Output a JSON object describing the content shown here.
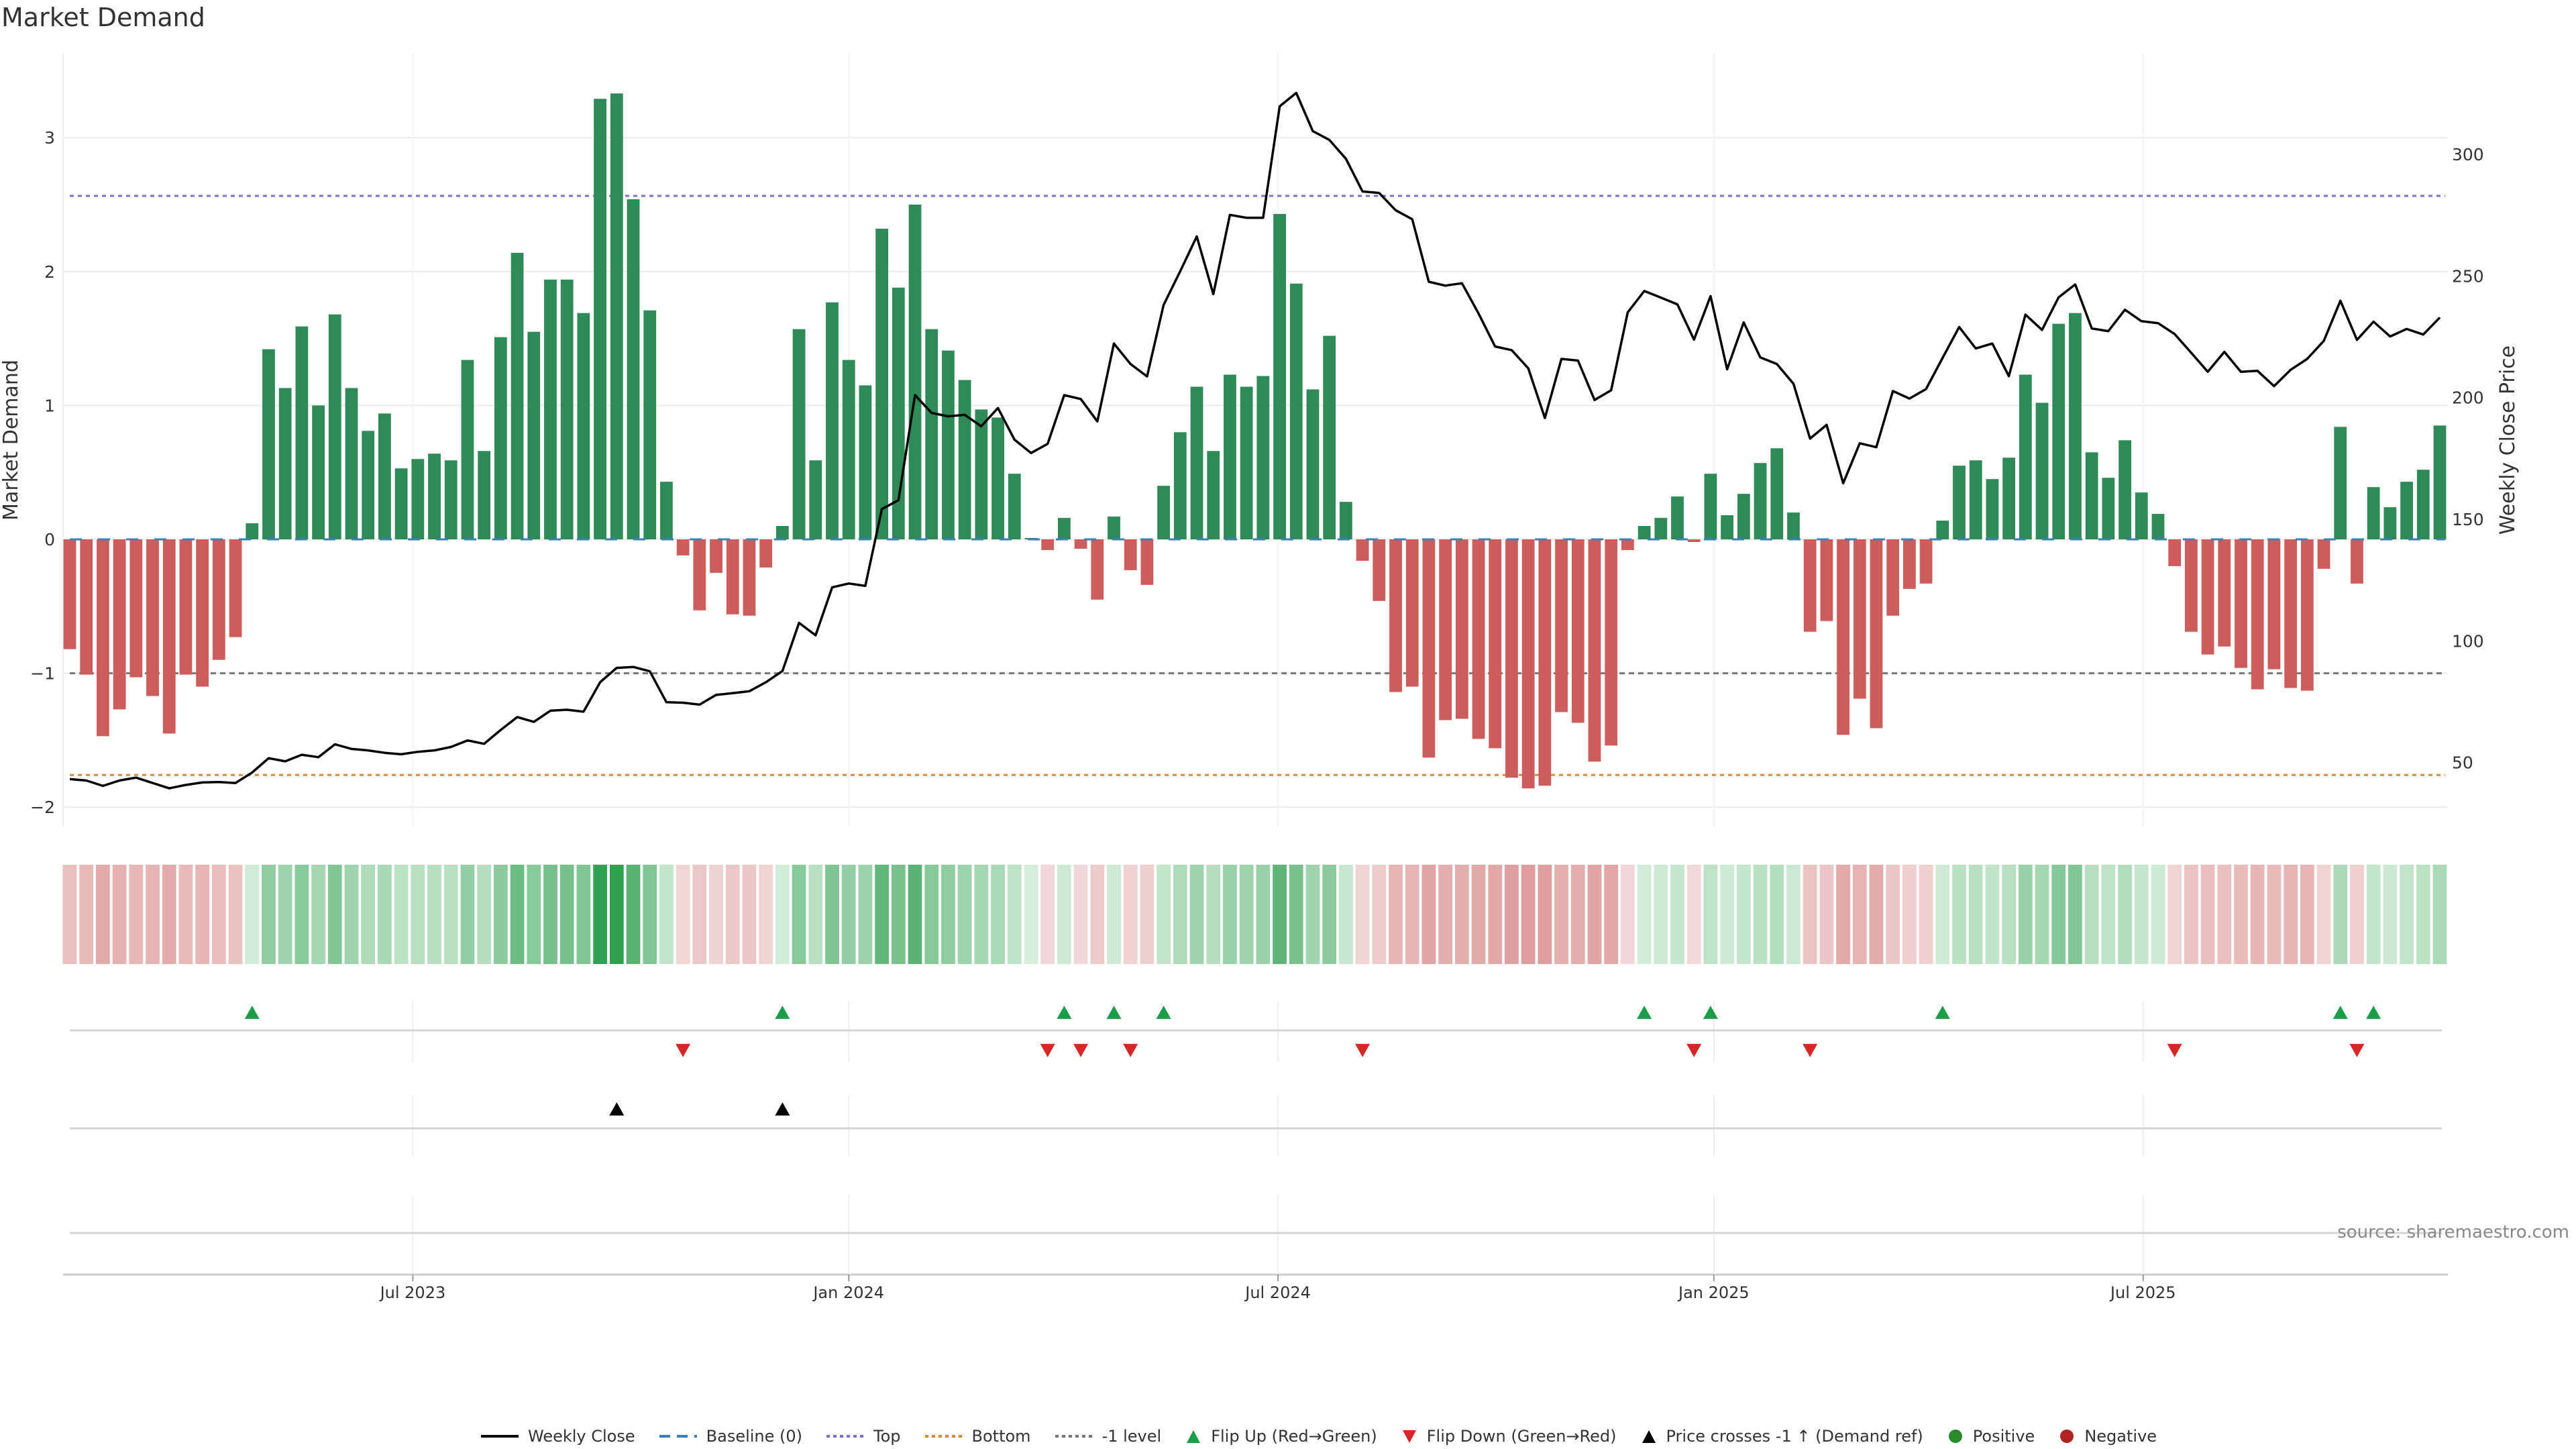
{
  "title": "Market Demand",
  "source": "source: sharemaestro.com",
  "legend": [
    {
      "label": "Weekly Close",
      "kind": "line",
      "color": "#000000"
    },
    {
      "label": "Baseline (0)",
      "kind": "dash",
      "color": "#3a7fb5"
    },
    {
      "label": "Top",
      "kind": "dot",
      "color": "#7b6fd6"
    },
    {
      "label": "Bottom",
      "kind": "dot",
      "color": "#e08a2a"
    },
    {
      "label": "-1 level",
      "kind": "dot",
      "color": "#777777"
    },
    {
      "label": "Flip Up (Red→Green)",
      "kind": "tri-up",
      "color": "#1a9e4a"
    },
    {
      "label": "Flip Down (Green→Red)",
      "kind": "tri-down",
      "color": "#d62728"
    },
    {
      "label": "Price crosses -1 ↑ (Demand ref)",
      "kind": "tri-up",
      "color": "#000000"
    },
    {
      "label": "Positive",
      "kind": "circle",
      "color": "#2a8a2a"
    },
    {
      "label": "Negative",
      "kind": "circle",
      "color": "#b22222"
    }
  ],
  "colors": {
    "positive_bar": "#2e8b57",
    "negative_bar": "#cd5c5c",
    "grid": "#ececec",
    "axis": "#cccccc"
  },
  "chart_data": {
    "type": "bar",
    "title": "Market Demand",
    "ylabel": "Market Demand",
    "y2label": "Weekly Close Price",
    "ylim": [
      -2.2,
      3.5
    ],
    "y2lim": [
      32,
      336
    ],
    "yticks": [
      -2,
      -1,
      0,
      1,
      2,
      3
    ],
    "y2ticks": [
      50,
      100,
      150,
      200,
      250,
      300
    ],
    "xticks": [
      {
        "label": "Jul 2023",
        "week": 20.7
      },
      {
        "label": "Jan 2024",
        "week": 47.0
      },
      {
        "label": "Jul 2024",
        "week": 72.9
      },
      {
        "label": "Jan 2025",
        "week": 99.2
      },
      {
        "label": "Jul 2025",
        "week": 125.1
      }
    ],
    "reference_lines": {
      "top": 2.565,
      "bottom": -1.76,
      "minus_one": -1,
      "baseline": 0
    },
    "demand": [
      -0.82,
      -1.01,
      -1.47,
      -1.27,
      -1.03,
      -1.17,
      -1.45,
      -1.01,
      -1.1,
      -0.9,
      -0.73,
      0.12,
      1.42,
      1.13,
      1.59,
      1.0,
      1.68,
      1.13,
      0.81,
      0.94,
      0.53,
      0.6,
      0.64,
      0.59,
      1.34,
      0.66,
      1.51,
      2.14,
      1.55,
      1.94,
      1.94,
      1.69,
      3.29,
      3.33,
      2.54,
      1.71,
      0.43,
      -0.12,
      -0.53,
      -0.25,
      -0.56,
      -0.57,
      -0.21,
      0.1,
      1.57,
      0.59,
      1.77,
      1.34,
      1.15,
      2.32,
      1.88,
      2.5,
      1.57,
      1.41,
      1.19,
      0.97,
      0.91,
      0.49,
      0.01,
      -0.08,
      0.16,
      -0.07,
      -0.45,
      0.17,
      -0.23,
      -0.34,
      0.4,
      0.8,
      1.14,
      0.66,
      1.23,
      1.14,
      1.22,
      2.43,
      1.91,
      1.12,
      1.52,
      0.28,
      -0.16,
      -0.46,
      -1.14,
      -1.1,
      -1.63,
      -1.35,
      -1.34,
      -1.49,
      -1.56,
      -1.78,
      -1.86,
      -1.84,
      -1.29,
      -1.37,
      -1.66,
      -1.54,
      -0.08,
      0.1,
      0.16,
      0.32,
      -0.02,
      0.49,
      0.18,
      0.34,
      0.57,
      0.68,
      0.2,
      -0.69,
      -0.61,
      -1.46,
      -1.19,
      -1.41,
      -0.57,
      -0.37,
      -0.33,
      0.14,
      0.55,
      0.59,
      0.45,
      0.61,
      1.23,
      1.02,
      1.61,
      1.69,
      0.65,
      0.46,
      0.74,
      0.35,
      0.19,
      -0.2,
      -0.69,
      -0.86,
      -0.8,
      -0.96,
      -1.12,
      -0.97,
      -1.11,
      -1.13,
      -0.22,
      0.84,
      -0.33,
      0.39,
      0.24,
      0.43,
      0.52,
      0.85
    ],
    "weekly_close": [
      43.2,
      42.6,
      40.4,
      42.6,
      43.8,
      41.6,
      39.4,
      40.8,
      41.8,
      42.0,
      41.6,
      45.9,
      51.8,
      50.5,
      53.2,
      52.2,
      57.5,
      55.6,
      55.0,
      54.0,
      53.4,
      54.4,
      55.0,
      56.4,
      59.1,
      57.7,
      63.4,
      68.7,
      66.7,
      71.3,
      71.7,
      70.9,
      83.0,
      88.9,
      89.3,
      87.5,
      74.8,
      74.6,
      73.8,
      77.8,
      78.5,
      79.3,
      83.0,
      87.6,
      107.4,
      102.3,
      122.0,
      123.6,
      122.6,
      154.2,
      157.8,
      201.0,
      193.7,
      192.3,
      192.9,
      188.2,
      195.7,
      182.7,
      177.2,
      181.0,
      201.0,
      199.4,
      190.2,
      222.2,
      213.8,
      208.7,
      238.1,
      251.9,
      266.2,
      242.5,
      275.1,
      273.9,
      273.9,
      319.7,
      325.2,
      309.5,
      305.9,
      298.1,
      284.7,
      284.1,
      277.0,
      273.3,
      247.6,
      246.0,
      247.0,
      234.6,
      221.0,
      219.5,
      212.0,
      191.6,
      215.9,
      215.2,
      199.0,
      203.0,
      235.0,
      243.8,
      241.1,
      238.3,
      223.8,
      241.7,
      211.6,
      230.9,
      216.5,
      213.8,
      205.7,
      183.1,
      188.8,
      164.8,
      181.2,
      179.6,
      202.7,
      199.6,
      203.5,
      216.3,
      229.0,
      220.2,
      222.2,
      208.8,
      234.1,
      227.8,
      241.2,
      246.5,
      228.4,
      227.3,
      236.1,
      231.4,
      230.6,
      226.1,
      218.4,
      210.6,
      218.8,
      210.6,
      211.0,
      204.7,
      211.4,
      215.9,
      223.3,
      239.8,
      223.7,
      231.2,
      225.1,
      228.2,
      225.9,
      232.9
    ],
    "flip_up_weeks": [
      11,
      43,
      60,
      63,
      66,
      95,
      99,
      113,
      137,
      139
    ],
    "flip_down_weeks": [
      37,
      59,
      61,
      64,
      78,
      98,
      105,
      127,
      138
    ],
    "price_cross_weeks": [
      33,
      43
    ]
  }
}
